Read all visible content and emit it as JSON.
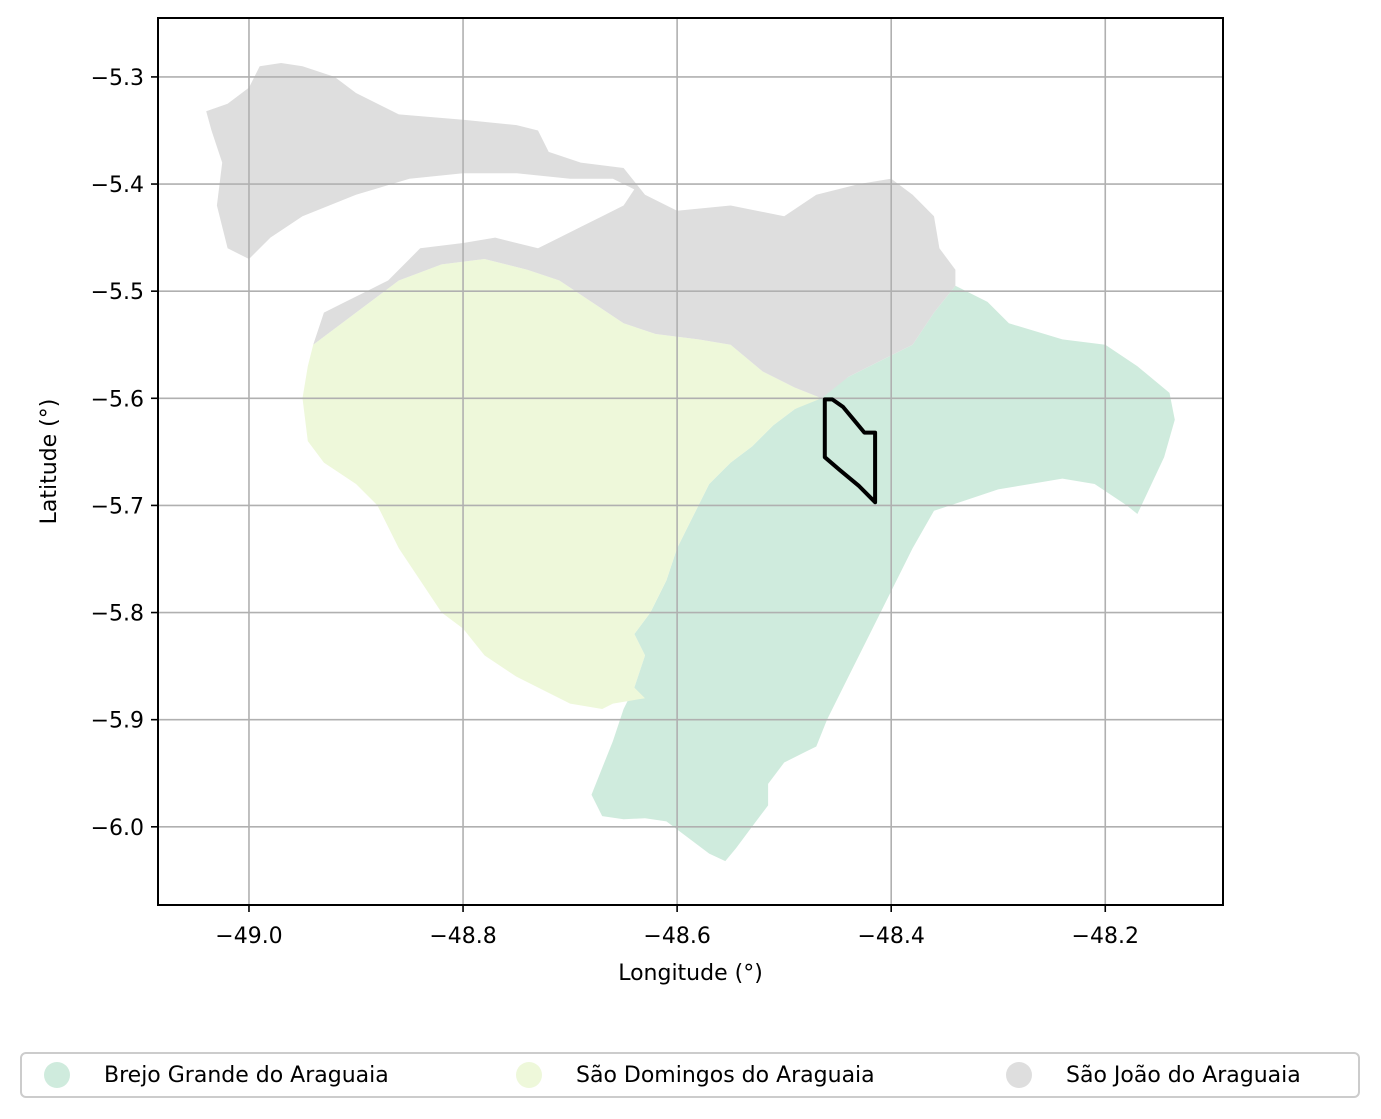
{
  "chart_data": {
    "type": "map",
    "xlabel": "Longitude (°)",
    "ylabel": "Latitude (°)",
    "xlim": [
      -49.085,
      -48.09
    ],
    "ylim": [
      -6.073,
      -5.245
    ],
    "xticks": [
      -49.0,
      -48.8,
      -48.6,
      -48.4,
      -48.2
    ],
    "yticks": [
      -5.3,
      -5.4,
      -5.5,
      -5.6,
      -5.7,
      -5.8,
      -5.9,
      -6.0
    ],
    "xtick_labels": [
      "−49.0",
      "−48.8",
      "−48.6",
      "−48.4",
      "−48.2"
    ],
    "ytick_labels": [
      "−5.3",
      "−5.4",
      "−5.5",
      "−5.6",
      "−5.7",
      "−5.8",
      "−5.9",
      "−6.0"
    ],
    "grid": true,
    "legend_position": "bottom",
    "regions": [
      {
        "name": "Brejo Grande do Araguaia",
        "color": "#cfebdd",
        "polygon": [
          [
            -48.34,
            -5.495
          ],
          [
            -48.31,
            -5.51
          ],
          [
            -48.29,
            -5.53
          ],
          [
            -48.24,
            -5.545
          ],
          [
            -48.2,
            -5.55
          ],
          [
            -48.17,
            -5.57
          ],
          [
            -48.14,
            -5.595
          ],
          [
            -48.135,
            -5.62
          ],
          [
            -48.145,
            -5.655
          ],
          [
            -48.17,
            -5.708
          ],
          [
            -48.18,
            -5.7
          ],
          [
            -48.21,
            -5.68
          ],
          [
            -48.24,
            -5.675
          ],
          [
            -48.27,
            -5.68
          ],
          [
            -48.3,
            -5.685
          ],
          [
            -48.33,
            -5.695
          ],
          [
            -48.36,
            -5.705
          ],
          [
            -48.38,
            -5.74
          ],
          [
            -48.4,
            -5.78
          ],
          [
            -48.42,
            -5.82
          ],
          [
            -48.44,
            -5.86
          ],
          [
            -48.46,
            -5.9
          ],
          [
            -48.47,
            -5.925
          ],
          [
            -48.48,
            -5.93
          ],
          [
            -48.5,
            -5.94
          ],
          [
            -48.515,
            -5.96
          ],
          [
            -48.515,
            -5.98
          ],
          [
            -48.53,
            -6.0
          ],
          [
            -48.545,
            -6.02
          ],
          [
            -48.555,
            -6.032
          ],
          [
            -48.57,
            -6.025
          ],
          [
            -48.59,
            -6.01
          ],
          [
            -48.61,
            -5.995
          ],
          [
            -48.63,
            -5.992
          ],
          [
            -48.65,
            -5.993
          ],
          [
            -48.67,
            -5.99
          ],
          [
            -48.68,
            -5.97
          ],
          [
            -48.67,
            -5.945
          ],
          [
            -48.66,
            -5.92
          ],
          [
            -48.65,
            -5.89
          ],
          [
            -48.64,
            -5.87
          ],
          [
            -48.63,
            -5.84
          ],
          [
            -48.64,
            -5.82
          ],
          [
            -48.625,
            -5.8
          ],
          [
            -48.61,
            -5.77
          ],
          [
            -48.6,
            -5.74
          ],
          [
            -48.59,
            -5.72
          ],
          [
            -48.58,
            -5.7
          ],
          [
            -48.57,
            -5.68
          ],
          [
            -48.55,
            -5.66
          ],
          [
            -48.53,
            -5.645
          ],
          [
            -48.51,
            -5.625
          ],
          [
            -48.49,
            -5.61
          ],
          [
            -48.47,
            -5.6
          ],
          [
            -48.44,
            -5.58
          ],
          [
            -48.41,
            -5.565
          ],
          [
            -48.38,
            -5.55
          ],
          [
            -48.36,
            -5.52
          ]
        ]
      },
      {
        "name": "São Domingos do Araguaia",
        "color": "#eef8da",
        "polygon": [
          [
            -48.94,
            -5.55
          ],
          [
            -48.9,
            -5.52
          ],
          [
            -48.86,
            -5.49
          ],
          [
            -48.82,
            -5.475
          ],
          [
            -48.78,
            -5.47
          ],
          [
            -48.74,
            -5.48
          ],
          [
            -48.71,
            -5.49
          ],
          [
            -48.68,
            -5.51
          ],
          [
            -48.65,
            -5.53
          ],
          [
            -48.62,
            -5.54
          ],
          [
            -48.58,
            -5.545
          ],
          [
            -48.55,
            -5.55
          ],
          [
            -48.52,
            -5.575
          ],
          [
            -48.49,
            -5.59
          ],
          [
            -48.465,
            -5.6
          ],
          [
            -48.49,
            -5.61
          ],
          [
            -48.51,
            -5.625
          ],
          [
            -48.53,
            -5.645
          ],
          [
            -48.55,
            -5.66
          ],
          [
            -48.57,
            -5.68
          ],
          [
            -48.58,
            -5.7
          ],
          [
            -48.59,
            -5.72
          ],
          [
            -48.6,
            -5.74
          ],
          [
            -48.61,
            -5.77
          ],
          [
            -48.625,
            -5.8
          ],
          [
            -48.64,
            -5.82
          ],
          [
            -48.63,
            -5.84
          ],
          [
            -48.64,
            -5.87
          ],
          [
            -48.63,
            -5.88
          ],
          [
            -48.66,
            -5.885
          ],
          [
            -48.67,
            -5.89
          ],
          [
            -48.7,
            -5.885
          ],
          [
            -48.72,
            -5.875
          ],
          [
            -48.75,
            -5.86
          ],
          [
            -48.78,
            -5.84
          ],
          [
            -48.8,
            -5.815
          ],
          [
            -48.82,
            -5.8
          ],
          [
            -48.84,
            -5.77
          ],
          [
            -48.86,
            -5.74
          ],
          [
            -48.88,
            -5.7
          ],
          [
            -48.9,
            -5.68
          ],
          [
            -48.93,
            -5.66
          ],
          [
            -48.945,
            -5.64
          ],
          [
            -48.95,
            -5.6
          ],
          [
            -48.945,
            -5.57
          ]
        ]
      },
      {
        "name": "São João do Araguaia",
        "color": "#dedede",
        "polygon": [
          [
            -49.04,
            -5.332
          ],
          [
            -49.02,
            -5.325
          ],
          [
            -49.0,
            -5.31
          ],
          [
            -48.99,
            -5.29
          ],
          [
            -48.97,
            -5.287
          ],
          [
            -48.95,
            -5.29
          ],
          [
            -48.92,
            -5.3
          ],
          [
            -48.9,
            -5.315
          ],
          [
            -48.86,
            -5.335
          ],
          [
            -48.8,
            -5.34
          ],
          [
            -48.75,
            -5.345
          ],
          [
            -48.73,
            -5.35
          ],
          [
            -48.72,
            -5.37
          ],
          [
            -48.69,
            -5.38
          ],
          [
            -48.65,
            -5.385
          ],
          [
            -48.63,
            -5.41
          ],
          [
            -48.6,
            -5.425
          ],
          [
            -48.55,
            -5.42
          ],
          [
            -48.5,
            -5.43
          ],
          [
            -48.47,
            -5.41
          ],
          [
            -48.43,
            -5.4
          ],
          [
            -48.4,
            -5.395
          ],
          [
            -48.38,
            -5.41
          ],
          [
            -48.36,
            -5.43
          ],
          [
            -48.355,
            -5.46
          ],
          [
            -48.34,
            -5.48
          ],
          [
            -48.34,
            -5.495
          ],
          [
            -48.36,
            -5.52
          ],
          [
            -48.38,
            -5.55
          ],
          [
            -48.41,
            -5.565
          ],
          [
            -48.44,
            -5.58
          ],
          [
            -48.465,
            -5.6
          ],
          [
            -48.49,
            -5.59
          ],
          [
            -48.52,
            -5.575
          ],
          [
            -48.55,
            -5.55
          ],
          [
            -48.58,
            -5.545
          ],
          [
            -48.62,
            -5.54
          ],
          [
            -48.65,
            -5.53
          ],
          [
            -48.68,
            -5.51
          ],
          [
            -48.71,
            -5.49
          ],
          [
            -48.74,
            -5.48
          ],
          [
            -48.78,
            -5.47
          ],
          [
            -48.82,
            -5.475
          ],
          [
            -48.86,
            -5.49
          ],
          [
            -48.9,
            -5.52
          ],
          [
            -48.94,
            -5.55
          ],
          [
            -48.93,
            -5.52
          ],
          [
            -48.91,
            -5.51
          ],
          [
            -48.89,
            -5.5
          ],
          [
            -48.87,
            -5.49
          ],
          [
            -48.84,
            -5.46
          ],
          [
            -48.8,
            -5.455
          ],
          [
            -48.77,
            -5.45
          ],
          [
            -48.75,
            -5.455
          ],
          [
            -48.73,
            -5.46
          ],
          [
            -48.71,
            -5.45
          ],
          [
            -48.69,
            -5.44
          ],
          [
            -48.67,
            -5.43
          ],
          [
            -48.65,
            -5.42
          ],
          [
            -48.64,
            -5.405
          ],
          [
            -48.66,
            -5.395
          ],
          [
            -48.7,
            -5.395
          ],
          [
            -48.75,
            -5.39
          ],
          [
            -48.8,
            -5.39
          ],
          [
            -48.85,
            -5.395
          ],
          [
            -48.9,
            -5.41
          ],
          [
            -48.95,
            -5.43
          ],
          [
            -48.98,
            -5.45
          ],
          [
            -49.0,
            -5.47
          ],
          [
            -49.02,
            -5.46
          ],
          [
            -49.03,
            -5.42
          ],
          [
            -49.025,
            -5.38
          ],
          [
            -49.035,
            -5.35
          ]
        ]
      }
    ],
    "outline": {
      "color": "#000000",
      "polygon": [
        [
          -48.462,
          -5.601
        ],
        [
          -48.455,
          -5.601
        ],
        [
          -48.445,
          -5.608
        ],
        [
          -48.435,
          -5.62
        ],
        [
          -48.425,
          -5.632
        ],
        [
          -48.415,
          -5.632
        ],
        [
          -48.415,
          -5.697
        ],
        [
          -48.43,
          -5.682
        ],
        [
          -48.448,
          -5.667
        ],
        [
          -48.462,
          -5.655
        ]
      ]
    }
  },
  "legend": {
    "items": [
      {
        "label": "Brejo Grande do Araguaia",
        "color": "#cfebdd"
      },
      {
        "label": "São Domingos do Araguaia",
        "color": "#eef8da"
      },
      {
        "label": "São João do Araguaia",
        "color": "#dedede"
      }
    ]
  }
}
